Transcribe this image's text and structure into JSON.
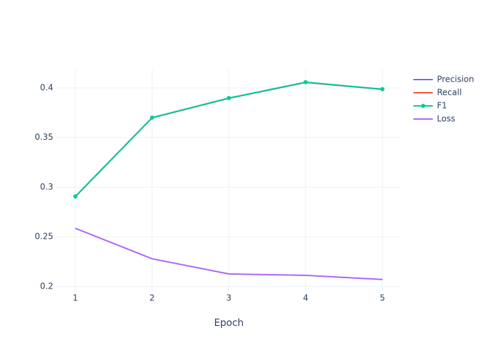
{
  "chart_data": {
    "type": "line",
    "x_label": "Epoch",
    "x": [
      1,
      2,
      3,
      4,
      5
    ],
    "series": [
      {
        "name": "Precision",
        "color": "#636efa",
        "mode": "lines",
        "values": [
          0.2905,
          0.3699,
          0.3895,
          0.4055,
          0.3985
        ]
      },
      {
        "name": "Recall",
        "color": "#EF553B",
        "mode": "lines",
        "values": [
          0.2906,
          0.37,
          0.3896,
          0.4056,
          0.3986
        ]
      },
      {
        "name": "F1",
        "color": "#00cc96",
        "mode": "lines+markers",
        "values": [
          0.2907,
          0.37,
          0.3897,
          0.4057,
          0.3987
        ]
      },
      {
        "name": "Loss",
        "color": "#ab63fa",
        "mode": "lines",
        "values": [
          0.2586,
          0.2279,
          0.2126,
          0.2112,
          0.207
        ]
      }
    ],
    "xlim": [
      0.739,
      5.243
    ],
    "ylim": [
      0.1958,
      0.4188
    ],
    "xticks": [
      1,
      2,
      3,
      4,
      5
    ],
    "yticks": [
      0.2,
      0.25,
      0.3,
      0.35,
      0.4
    ],
    "grid": true
  }
}
